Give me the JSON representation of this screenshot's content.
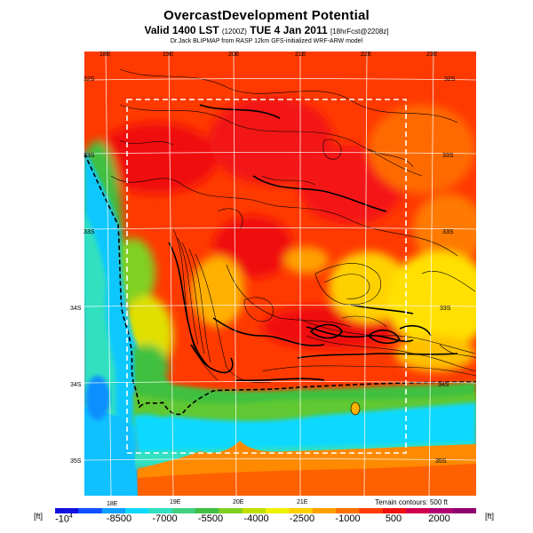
{
  "header": {
    "title": "OvercastDevelopment Potential",
    "subtitle_main": "Valid 1400 LST",
    "subtitle_code": "(1200Z)",
    "subtitle_date": "TUE 4 Jan 2011",
    "subtitle_fcst": "[18hrFcst@2208z]",
    "credit": "Dr.Jack BLIPMAP from RASP 12km GFS-initialized WRF-ARW model"
  },
  "map": {
    "lon_labels_top": [
      "18E",
      "19E",
      "20E",
      "21E",
      "22E",
      "23E"
    ],
    "lon_labels_bottom": [
      "18E",
      "19E",
      "20E",
      "21E"
    ],
    "lat_labels_left": [
      "32S",
      "33S",
      "33S",
      "34S",
      "34S",
      "35S"
    ],
    "lat_labels_right": [
      "32S",
      "33S",
      "33S",
      "33S",
      "34S",
      "35S"
    ],
    "terrain_note": "Terrain contours: 500 ft"
  },
  "colorbar": {
    "unit_left": "[ft]",
    "unit_right": "[ft]",
    "tick_first": "-10",
    "tick_first_exp": "4",
    "ticks": [
      "-8500",
      "-7000",
      "-5500",
      "-4000",
      "-2500",
      "-1000",
      "500",
      "2000"
    ],
    "colors": [
      "#1010e0",
      "#1050ff",
      "#10a0ff",
      "#10d8ff",
      "#30e0c0",
      "#40d080",
      "#40c040",
      "#80d020",
      "#c0e000",
      "#f0f000",
      "#ffd000",
      "#ffa000",
      "#ff7000",
      "#ff3c00",
      "#f01010",
      "#d00050",
      "#b00070",
      "#900070"
    ]
  }
}
